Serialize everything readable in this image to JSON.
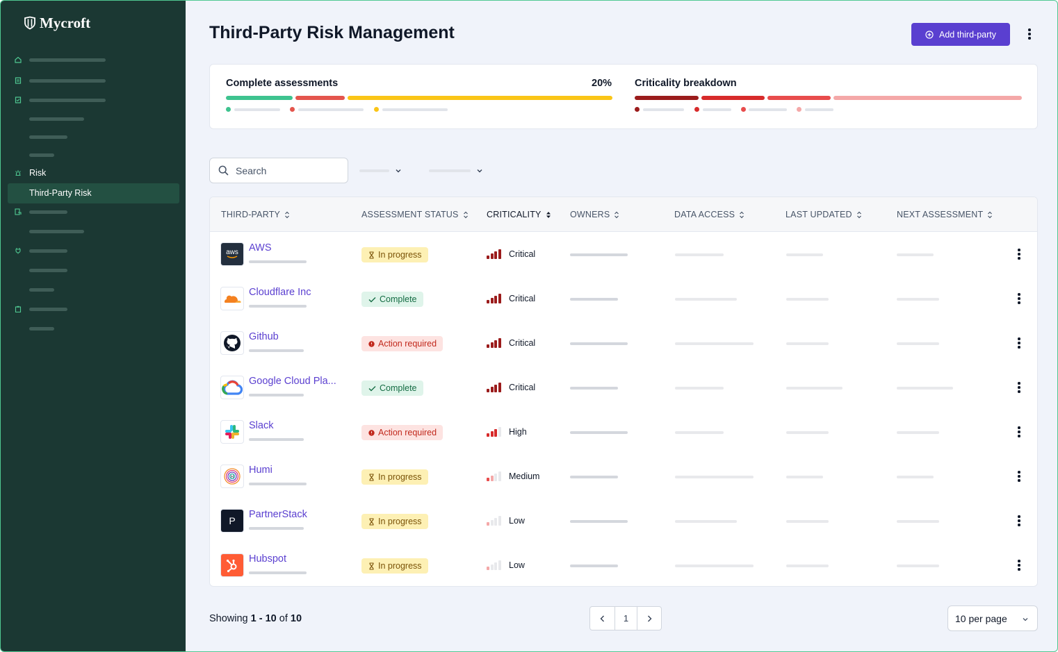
{
  "app": {
    "logo_text": "Mycroft"
  },
  "sidebar": {
    "section_risk": "Risk",
    "active_item": "Third-Party Risk"
  },
  "header": {
    "title": "Third-Party Risk Management",
    "add_button": "Add third-party"
  },
  "summary": {
    "assessments_title": "Complete assessments",
    "assessments_percent": "20%",
    "criticality_title": "Criticality breakdown",
    "colors": {
      "complete": "#3ec38f",
      "action": "#e4554d",
      "progress": "#fac517",
      "critical": "#9b1c1c",
      "high": "#d72b2b",
      "medium": "#e84c4c",
      "low": "#f4a8a8"
    }
  },
  "toolbar": {
    "search_placeholder": "Search"
  },
  "table": {
    "columns": [
      "THIRD-PARTY",
      "ASSESSMENT STATUS",
      "CRITICALITY",
      "OWNERS",
      "DATA ACCESS",
      "LAST UPDATED",
      "NEXT ASSESSMENT"
    ],
    "rows": [
      {
        "name": "AWS",
        "logo": "aws-logo-icon",
        "status": "In progress",
        "status_kind": "progress",
        "criticality": "Critical",
        "level": 4
      },
      {
        "name": "Cloudflare Inc",
        "logo": "cloudflare-logo-icon",
        "status": "Complete",
        "status_kind": "complete",
        "criticality": "Critical",
        "level": 4
      },
      {
        "name": "Github",
        "logo": "github-logo-icon",
        "status": "Action required",
        "status_kind": "action",
        "criticality": "Critical",
        "level": 4
      },
      {
        "name": "Google Cloud Pla...",
        "logo": "google-cloud-logo-icon",
        "status": "Complete",
        "status_kind": "complete",
        "criticality": "Critical",
        "level": 4
      },
      {
        "name": "Slack",
        "logo": "slack-logo-icon",
        "status": "Action required",
        "status_kind": "action",
        "criticality": "High",
        "level": 3
      },
      {
        "name": "Humi",
        "logo": "humi-logo-icon",
        "status": "In progress",
        "status_kind": "progress",
        "criticality": "Medium",
        "level": 2
      },
      {
        "name": "PartnerStack",
        "logo": "partnerstack-logo-icon",
        "logo_text": "P",
        "status": "In progress",
        "status_kind": "progress",
        "criticality": "Low",
        "level": 1
      },
      {
        "name": "Hubspot",
        "logo": "hubspot-logo-icon",
        "status": "In progress",
        "status_kind": "progress",
        "criticality": "Low",
        "level": 1
      }
    ]
  },
  "footer": {
    "showing_prefix": "Showing ",
    "range": "1 - 10",
    "of_text": " of ",
    "total": "10",
    "current_page": "1",
    "per_page": "10 per page"
  }
}
